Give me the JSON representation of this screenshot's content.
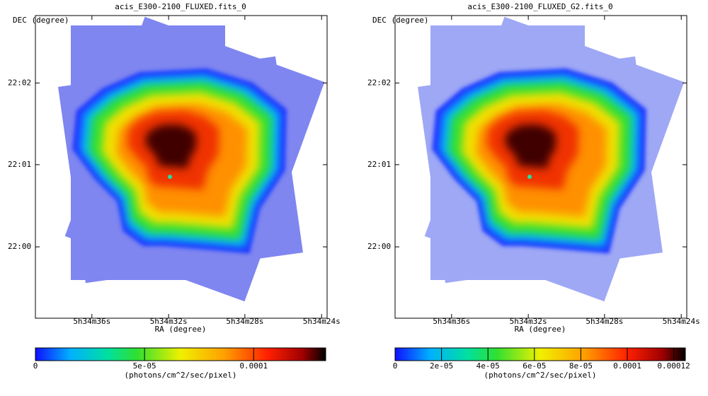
{
  "panels": [
    {
      "title": "acis_E300-2100_FLUXED.fits_0",
      "image": {
        "xlabel": "RA (degree)",
        "ylabel": "DEC (degree)",
        "xlim": [
          83.6623,
          83.5988
        ],
        "ylim": [
          21.9855,
          22.047
        ],
        "xticks": [
          {
            "value": 83.65,
            "label": "5h34m36s"
          },
          {
            "value": 83.6333,
            "label": "5h34m32s"
          },
          {
            "value": 83.6167,
            "label": "5h34m28s"
          },
          {
            "value": 83.6,
            "label": "5h34m24s"
          }
        ],
        "yticks": [
          {
            "value": 22.0333,
            "label": "22:02"
          },
          {
            "value": 22.0167,
            "label": "22:01"
          },
          {
            "value": 22.0,
            "label": "22:00"
          }
        ]
      },
      "colorbar": {
        "lim": [
          0,
          0.000133
        ],
        "label": "(photons/cm^2/sec/pixel)",
        "ticks": [
          0,
          {
            "value": 5e-05,
            "label": "5e-05"
          },
          0.0001
        ]
      }
    },
    {
      "title": "acis_E300-2100_FLUXED_G2.fits_0",
      "image": {
        "xlabel": "RA (degree)",
        "ylabel": "DEC (degree)",
        "xlim": [
          83.6623,
          83.5988
        ],
        "ylim": [
          21.9855,
          22.047
        ],
        "xticks": [
          {
            "value": 83.65,
            "label": "5h34m36s"
          },
          {
            "value": 83.6333,
            "label": "5h34m32s"
          },
          {
            "value": 83.6167,
            "label": "5h34m28s"
          },
          {
            "value": 83.6,
            "label": "5h34m24s"
          }
        ],
        "yticks": [
          {
            "value": 22.0333,
            "label": "22:02"
          },
          {
            "value": 22.0167,
            "label": "22:01"
          },
          {
            "value": 22.0,
            "label": "22:00"
          }
        ]
      },
      "colorbar": {
        "lim": [
          0,
          0.000125
        ],
        "label": "(photons/cm^2/sec/pixel)",
        "ticks": [
          0,
          {
            "value": 2e-05,
            "label": "2e-05"
          },
          {
            "value": 4e-05,
            "label": "4e-05"
          },
          {
            "value": 6e-05,
            "label": "6e-05"
          },
          {
            "value": 8e-05,
            "label": "8e-05"
          },
          0.0001,
          0.00012
        ]
      }
    }
  ]
}
